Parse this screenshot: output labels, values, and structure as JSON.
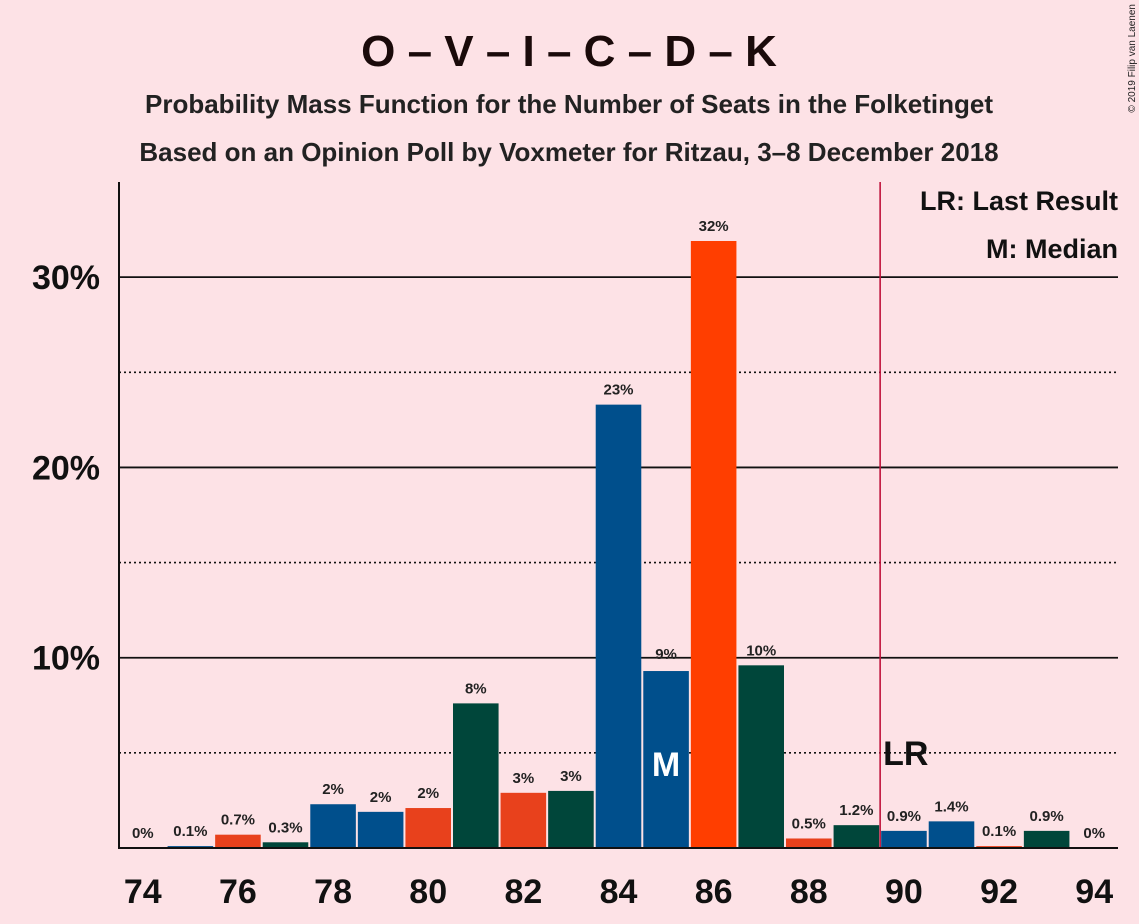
{
  "chart_data": {
    "type": "bar",
    "title": "O – V – I – C – D – K",
    "subtitle": "Probability Mass Function for the Number of Seats in the Folketinget",
    "subtitle2": "Based on an Opinion Poll by Voxmeter for Ritzau, 3–8 December 2018",
    "copyright": "© 2019 Filip van Laenen",
    "xlabel": "",
    "ylabel": "",
    "ylim": [
      0,
      35
    ],
    "xlim": [
      73.5,
      94.5
    ],
    "y_ticks": [
      {
        "value": 10,
        "label": "10%"
      },
      {
        "value": 20,
        "label": "20%"
      },
      {
        "value": 30,
        "label": "30%"
      }
    ],
    "y_minor_gridlines": [
      5,
      15,
      25
    ],
    "x_ticks": [
      74,
      76,
      78,
      80,
      82,
      84,
      86,
      88,
      90,
      92,
      94
    ],
    "bars": [
      {
        "x": 74,
        "value": 0,
        "label": "0%",
        "color": "#004f8c"
      },
      {
        "x": 75,
        "value": 0.1,
        "label": "0.1%",
        "color": "#004f8c"
      },
      {
        "x": 76,
        "value": 0.7,
        "label": "0.7%",
        "color": "#e8411c"
      },
      {
        "x": 77,
        "value": 0.3,
        "label": "0.3%",
        "color": "#00463a"
      },
      {
        "x": 78,
        "value": 2.3,
        "label": "2%",
        "color": "#004f8c"
      },
      {
        "x": 79,
        "value": 1.9,
        "label": "2%",
        "color": "#004f8c"
      },
      {
        "x": 80,
        "value": 2.1,
        "label": "2%",
        "color": "#e8411c"
      },
      {
        "x": 81,
        "value": 7.6,
        "label": "8%",
        "color": "#00463a"
      },
      {
        "x": 82,
        "value": 2.9,
        "label": "3%",
        "color": "#e8411c"
      },
      {
        "x": 83,
        "value": 3.0,
        "label": "3%",
        "color": "#00463a"
      },
      {
        "x": 84,
        "value": 23.3,
        "label": "23%",
        "color": "#004f8c"
      },
      {
        "x": 85,
        "value": 9.3,
        "label": "9%",
        "color": "#004f8c"
      },
      {
        "x": 86,
        "value": 31.9,
        "label": "32%",
        "color": "#ff3e00"
      },
      {
        "x": 87,
        "value": 9.6,
        "label": "10%",
        "color": "#00463a"
      },
      {
        "x": 88,
        "value": 0.5,
        "label": "0.5%",
        "color": "#e8411c"
      },
      {
        "x": 89,
        "value": 1.2,
        "label": "1.2%",
        "color": "#00463a"
      },
      {
        "x": 90,
        "value": 0.9,
        "label": "0.9%",
        "color": "#004f8c"
      },
      {
        "x": 91,
        "value": 1.4,
        "label": "1.4%",
        "color": "#004f8c"
      },
      {
        "x": 92,
        "value": 0.1,
        "label": "0.1%",
        "color": "#e8411c"
      },
      {
        "x": 93,
        "value": 0.9,
        "label": "0.9%",
        "color": "#00463a"
      },
      {
        "x": 94,
        "value": 0,
        "label": "0%",
        "color": "#004f8c"
      }
    ],
    "median": {
      "x": 85,
      "label": "M"
    },
    "last_result": {
      "x": 89.5,
      "label": "LR",
      "color": "#c0143c"
    },
    "legend": [
      "LR: Last Result",
      "M: Median"
    ],
    "legend_position": "top-right",
    "grid": true
  }
}
